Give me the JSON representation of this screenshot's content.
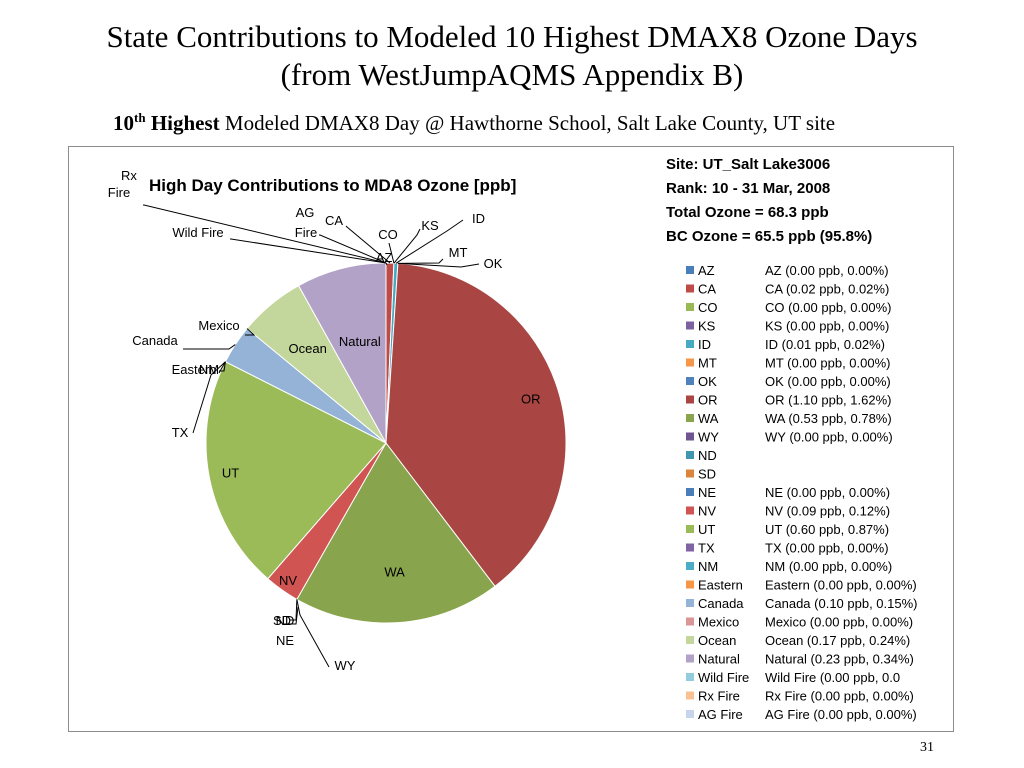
{
  "slide": {
    "title_line1": "State Contributions to Modeled 10 Highest DMAX8 Ozone Days",
    "title_line2": "(from WestJumpAQMS Appendix B)",
    "subtitle_bold_num": "10",
    "subtitle_bold_sup": "th",
    "subtitle_bold_word": "Highest",
    "subtitle_rest": "Modeled DMAX8 Day @ Hawthorne School, Salt Lake County, UT site",
    "page_number": "31"
  },
  "chart_data": {
    "type": "pie",
    "title": "High Day Contributions to MDA8 Ozone [ppb]",
    "info": [
      "Site: UT_Salt Lake3006",
      "Rank: 10 - 31 Mar, 2008",
      "Total Ozone = 68.3 ppb",
      "BC Ozone = 65.5 ppb (95.8%)"
    ],
    "slices": [
      {
        "name": "AZ",
        "value": 0.0,
        "color": "#4a7ebb",
        "pie_label": "AZ",
        "legend_text": "AZ (0.00 ppb, 0.00%)"
      },
      {
        "name": "CA",
        "value": 0.02,
        "color": "#be4b48",
        "pie_label": "CA",
        "legend_text": "CA (0.02 ppb, 0.02%)"
      },
      {
        "name": "CO",
        "value": 0.0,
        "color": "#98b954",
        "pie_label": "CO",
        "legend_text": "CO (0.00 ppb, 0.00%)"
      },
      {
        "name": "KS",
        "value": 0.0,
        "color": "#7d60a0",
        "pie_label": "KS",
        "legend_text": "KS (0.00 ppb, 0.00%)"
      },
      {
        "name": "ID",
        "value": 0.01,
        "color": "#46aac5",
        "pie_label": "ID",
        "legend_text": "ID (0.01 ppb, 0.02%)"
      },
      {
        "name": "MT",
        "value": 0.0,
        "color": "#f79646",
        "pie_label": "MT",
        "legend_text": "MT (0.00 ppb, 0.00%)"
      },
      {
        "name": "OK",
        "value": 0.0,
        "color": "#4f81bd",
        "pie_label": "OK",
        "legend_text": "OK (0.00 ppb, 0.00%)"
      },
      {
        "name": "OR",
        "value": 1.1,
        "color": "#a94643",
        "pie_label": "OR",
        "legend_text": "OR (1.10 ppb, 1.62%)"
      },
      {
        "name": "WA",
        "value": 0.53,
        "color": "#88a44c",
        "pie_label": "WA",
        "legend_text": "WA (0.53 ppb, 0.78%)"
      },
      {
        "name": "WY",
        "value": 0.0,
        "color": "#6f558e",
        "pie_label": "WY",
        "legend_text": "WY (0.00 ppb, 0.00%)"
      },
      {
        "name": "ND",
        "value": 0.0,
        "color": "#3f96ae",
        "pie_label": "ND",
        "legend_text": ""
      },
      {
        "name": "SD",
        "value": 0.0,
        "color": "#db843d",
        "pie_label": "SD",
        "legend_text": ""
      },
      {
        "name": "NE",
        "value": 0.0,
        "color": "#4a7ebb",
        "pie_label": "NE",
        "legend_text": "NE (0.00 ppb, 0.00%)"
      },
      {
        "name": "NV",
        "value": 0.09,
        "color": "#d05451",
        "pie_label": "NV",
        "legend_text": "NV (0.09 ppb, 0.12%)"
      },
      {
        "name": "UT",
        "value": 0.6,
        "color": "#9bbb59",
        "pie_label": "UT",
        "legend_text": "UT (0.60 ppb, 0.87%)"
      },
      {
        "name": "TX",
        "value": 0.0,
        "color": "#8064a2",
        "pie_label": "TX",
        "legend_text": "TX (0.00 ppb, 0.00%)"
      },
      {
        "name": "NM",
        "value": 0.0,
        "color": "#4bacc6",
        "pie_label": "NM",
        "legend_text": "NM (0.00 ppb, 0.00%)"
      },
      {
        "name": "Eastern",
        "value": 0.0,
        "color": "#f79646",
        "pie_label": "Eastern",
        "legend_text": "Eastern (0.00 ppb, 0.00%)"
      },
      {
        "name": "Canada",
        "value": 0.1,
        "color": "#95b3d7",
        "pie_label": "Canada",
        "legend_text": "Canada (0.10 ppb, 0.15%)"
      },
      {
        "name": "Mexico",
        "value": 0.0,
        "color": "#d99694",
        "pie_label": "Mexico",
        "legend_text": "Mexico (0.00 ppb, 0.00%)"
      },
      {
        "name": "Ocean",
        "value": 0.17,
        "color": "#c3d69b",
        "pie_label": "Ocean",
        "legend_text": "Ocean (0.17 ppb, 0.24%)"
      },
      {
        "name": "Natural",
        "value": 0.23,
        "color": "#b2a2c7",
        "pie_label": "Natural",
        "legend_text": "Natural (0.23 ppb, 0.34%)"
      },
      {
        "name": "Wild Fire",
        "value": 0.0,
        "color": "#93cddd",
        "pie_label": "Wild Fire",
        "legend_text": "Wild Fire (0.00 ppb, 0.0"
      },
      {
        "name": "Rx Fire",
        "value": 0.0,
        "color": "#fac090",
        "pie_label": "Rx\nFire",
        "legend_text": "Rx Fire (0.00 ppb, 0.00%)"
      },
      {
        "name": "AG Fire",
        "value": 0.0,
        "color": "#c6d5ec",
        "pie_label": "AG\nFire",
        "legend_text": "AG Fire (0.00 ppb, 0.00%)"
      }
    ],
    "extra_pie_labels": [
      "ND",
      "NE"
    ]
  }
}
